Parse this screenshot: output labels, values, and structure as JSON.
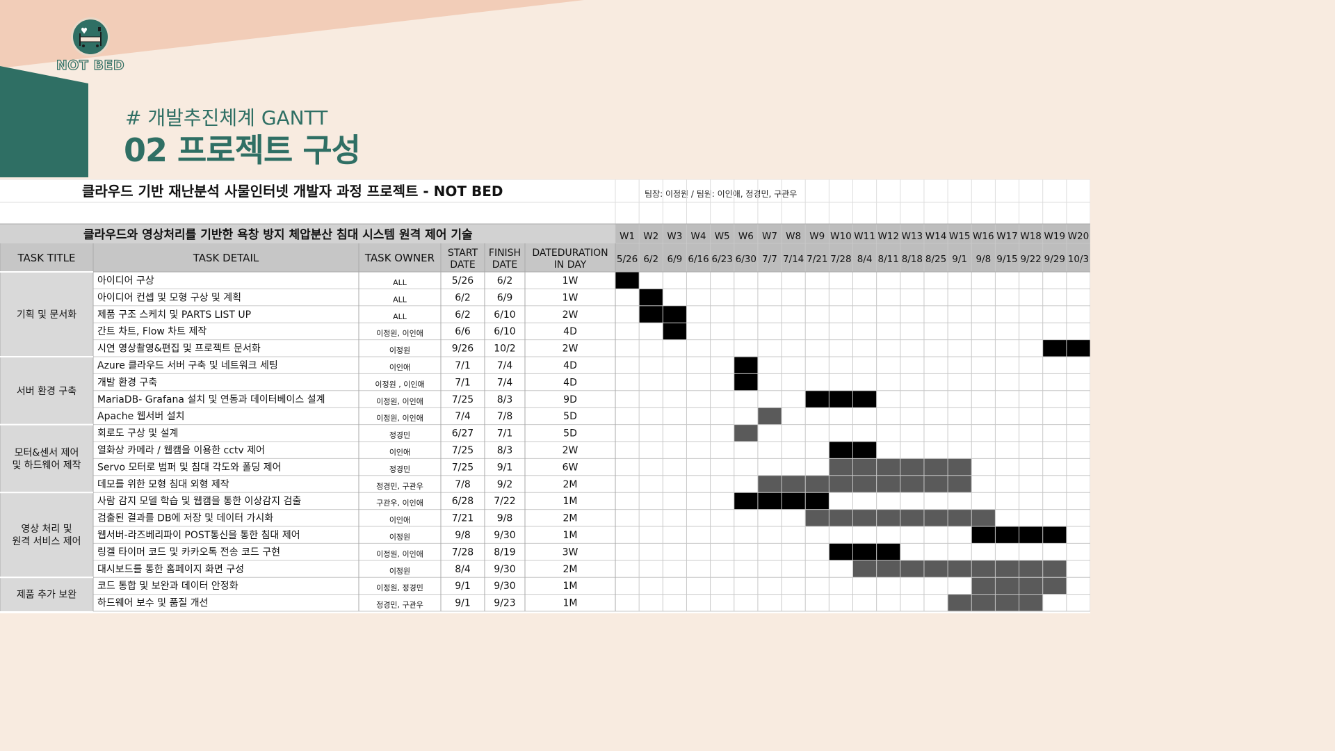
{
  "logo": {
    "text": "NOT BED",
    "icon": "hospital-bed-icon"
  },
  "header": {
    "subtitle": "# 개발추진체계 GANTT",
    "title": "02 프로젝트 구성"
  },
  "colors": {
    "teal": "#2f6f64",
    "peach": "#f2cdb8",
    "cream": "#f8ebe0",
    "header_gray": "#cfcfcf",
    "bar_black": "#000000",
    "bar_gray": "#5a5a5a"
  },
  "sheet": {
    "project_title": "클라우드 기반 재난분석 사물인터넷 개발자 과정 프로젝트 - NOT BED",
    "team": "팀장:  이정원 / 팀원: 이인애, 정경민, 구관우",
    "subject": "클라우드와 영상처리를 기반한 욕창 방지 체압분산 침대 시스템 원격 제어 기술",
    "columns": {
      "task_title": "TASK TITLE",
      "task_detail": "TASK DETAIL",
      "task_owner": "TASK OWNER",
      "start": [
        "START",
        "DATE"
      ],
      "finish": [
        "FINISH",
        "DATE"
      ],
      "duration": [
        "DATEDURATION",
        "IN DAY"
      ]
    },
    "weeks": [
      "W1",
      "W2",
      "W3",
      "W4",
      "W5",
      "W6",
      "W7",
      "W8",
      "W9",
      "W10",
      "W11",
      "W12",
      "W13",
      "W14",
      "W15",
      "W16",
      "W17",
      "W18",
      "W19",
      "W20"
    ],
    "week_dates": [
      "5/26",
      "6/2",
      "6/9",
      "6/16",
      "6/23",
      "6/30",
      "7/7",
      "7/14",
      "7/21",
      "7/28",
      "8/4",
      "8/11",
      "8/18",
      "8/25",
      "9/1",
      "9/8",
      "9/15",
      "9/22",
      "9/29",
      "10/3"
    ],
    "groups": [
      {
        "title": [
          "기획 및 문서화"
        ],
        "start": 0,
        "count": 5
      },
      {
        "title": [
          "서버 환경 구축"
        ],
        "start": 5,
        "count": 4
      },
      {
        "title": [
          "모터&센서 제어",
          "및 하드웨어 제작"
        ],
        "start": 9,
        "count": 4
      },
      {
        "title": [
          "영상 처리 및",
          "원격 서비스 제어"
        ],
        "start": 13,
        "count": 5
      },
      {
        "title": [
          "제품 추가 보완"
        ],
        "start": 18,
        "count": 2
      }
    ],
    "tasks": [
      {
        "detail": "아이디어 구상",
        "owner": "ALL",
        "start": "5/26",
        "finish": "6/2",
        "duration": "1W",
        "bars": [
          [
            0,
            1,
            "black"
          ]
        ]
      },
      {
        "detail": "아이디어 컨셉 및 모형 구상 및 계획",
        "owner": "ALL",
        "start": "6/2",
        "finish": "6/9",
        "duration": "1W",
        "bars": [
          [
            1,
            2,
            "black"
          ]
        ]
      },
      {
        "detail": "제품 구조 스케치 및 PARTS LIST UP",
        "owner": "ALL",
        "start": "6/2",
        "finish": "6/10",
        "duration": "2W",
        "bars": [
          [
            1,
            3,
            "black"
          ]
        ]
      },
      {
        "detail": "간트 차트, Flow 차트 제작",
        "owner": "이정원, 이인애",
        "start": "6/6",
        "finish": "6/10",
        "duration": "4D",
        "bars": [
          [
            2,
            3,
            "black"
          ]
        ]
      },
      {
        "detail": "시연 영상촬영&편집 및 프로젝트 문서화",
        "owner": "이정원",
        "start": "9/26",
        "finish": "10/2",
        "duration": "2W",
        "bars": [
          [
            18,
            20,
            "black"
          ]
        ]
      },
      {
        "detail": "Azure 클라우드 서버 구축 및 네트워크 세팅",
        "owner": "이인애",
        "start": "7/1",
        "finish": "7/4",
        "duration": "4D",
        "bars": [
          [
            5,
            6,
            "black"
          ]
        ]
      },
      {
        "detail": "개발 환경 구축",
        "owner": "이정원 , 이인애",
        "start": "7/1",
        "finish": "7/4",
        "duration": "4D",
        "bars": [
          [
            5,
            6,
            "black"
          ]
        ]
      },
      {
        "detail": "MariaDB- Grafana 설치 및 연동과 데이터베이스 설계",
        "owner": "이정원, 이인애",
        "start": "7/25",
        "finish": "8/3",
        "duration": "9D",
        "bars": [
          [
            8,
            11,
            "black"
          ]
        ]
      },
      {
        "detail": "Apache 웹서버 설치",
        "owner": "이정원, 이인애",
        "start": "7/4",
        "finish": "7/8",
        "duration": "5D",
        "bars": [
          [
            6,
            7,
            "gray"
          ]
        ]
      },
      {
        "detail": "회로도 구상 및 설계",
        "owner": "정경민",
        "start": "6/27",
        "finish": "7/1",
        "duration": "5D",
        "bars": [
          [
            5,
            6,
            "gray"
          ]
        ]
      },
      {
        "detail": "열화상 카메라 / 웹캠을 이용한 cctv 제어",
        "owner": "이인애",
        "start": "7/25",
        "finish": "8/3",
        "duration": "2W",
        "bars": [
          [
            9,
            11,
            "black"
          ]
        ]
      },
      {
        "detail": "Servo 모터로 범퍼 및 침대 각도와 폴딩 제어",
        "owner": "정경민",
        "start": "7/25",
        "finish": "9/1",
        "duration": "6W",
        "bars": [
          [
            9,
            15,
            "gray"
          ]
        ]
      },
      {
        "detail": "데모를 위한 모형 침대 외형 제작",
        "owner": "정경민, 구관우",
        "start": "7/8",
        "finish": "9/2",
        "duration": "2M",
        "bars": [
          [
            6,
            15,
            "gray"
          ]
        ]
      },
      {
        "detail": "사람 감지 모델 학습 및 웹캠을 통한 이상감지 검출",
        "owner": "구관우, 이인애",
        "start": "6/28",
        "finish": "7/22",
        "duration": "1M",
        "bars": [
          [
            5,
            9,
            "black"
          ]
        ]
      },
      {
        "detail": "검출된 결과를 DB에 저장 및 데이터 가시화",
        "owner": "이인애",
        "start": "7/21",
        "finish": "9/8",
        "duration": "2M",
        "bars": [
          [
            8,
            16,
            "gray"
          ]
        ]
      },
      {
        "detail": "웹서버-라즈베리파이 POST통신을 통한 침대 제어",
        "owner": "이정원",
        "start": "9/8",
        "finish": "9/30",
        "duration": "1M",
        "bars": [
          [
            15,
            19,
            "black"
          ]
        ]
      },
      {
        "detail": "링겔 타이머 코드 및 카카오톡 전송 코드 구현",
        "owner": "이정원, 이인애",
        "start": "7/28",
        "finish": "8/19",
        "duration": "3W",
        "bars": [
          [
            9,
            12,
            "black"
          ]
        ]
      },
      {
        "detail": "대시보드를 통한 홈페이지 화면 구성",
        "owner": "이정원",
        "start": "8/4",
        "finish": "9/30",
        "duration": "2M",
        "bars": [
          [
            10,
            19,
            "gray"
          ]
        ]
      },
      {
        "detail": "코드 통합 및 보완과 데이터 안정화",
        "owner": "이정원, 정경민",
        "start": "9/1",
        "finish": "9/30",
        "duration": "1M",
        "bars": [
          [
            15,
            19,
            "gray"
          ]
        ]
      },
      {
        "detail": "하드웨어 보수 및 품질 개선",
        "owner": "정경민, 구관우",
        "start": "9/1",
        "finish": "9/23",
        "duration": "1M",
        "bars": [
          [
            14,
            18,
            "gray"
          ]
        ]
      }
    ]
  }
}
